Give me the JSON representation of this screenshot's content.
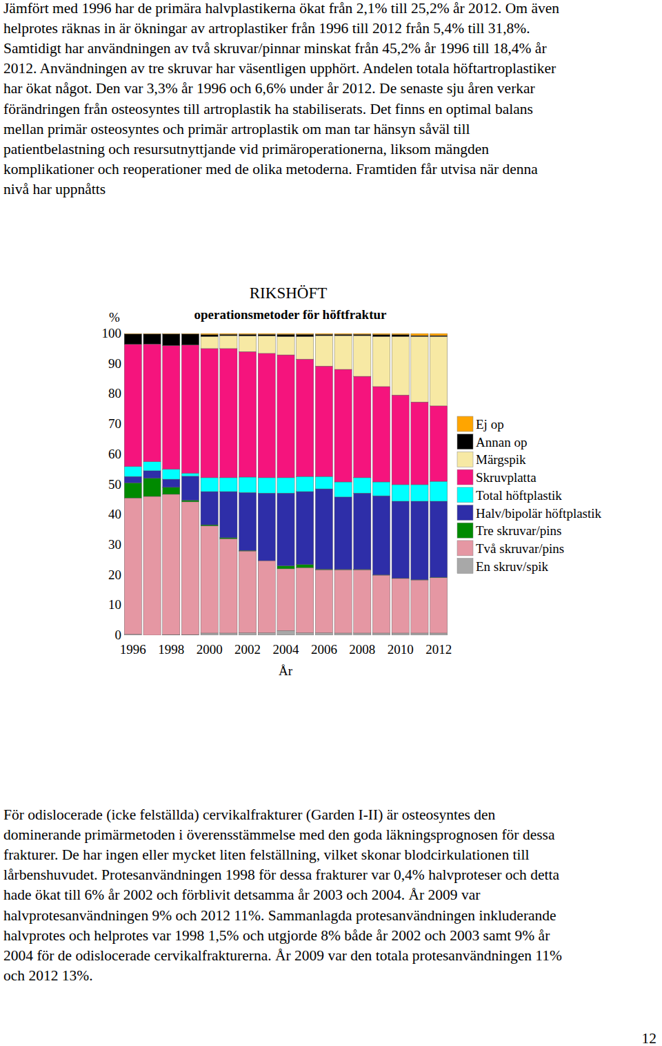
{
  "text_top": {
    "lines": [
      "Jämfört med 1996 har de primära halvplastikerna ökat från 2,1% till 25,2% år 2012. Om även",
      "helprotes räknas in är ökningar av artroplastiker från 1996 till 2012 från 5,4% till 31,8%.",
      "Samtidigt har användningen av två skruvar/pinnar minskat från 45,2% år 1996 till 18,4% år",
      "2012. Användningen av tre skruvar har väsentligen upphört. Andelen totala höftartroplastiker",
      "har ökat något. Den var 3,3% år 1996 och 6,6% under år 2012. De senaste sju åren verkar",
      "förändringen från osteosyntes till artroplastik ha stabiliserats. Det finns en optimal balans",
      "mellan primär osteosyntes och primär artroplastik om man tar hänsyn såväl till",
      "patientbelastning och resursutnyttjande vid primäroperationerna, liksom mängden",
      "komplikationer och reoperationer med de olika metoderna. Framtiden får utvisa när denna",
      "nivå har uppnåtts"
    ]
  },
  "chart_data": {
    "type": "bar",
    "stacked": true,
    "title": "RIKSHÖFT",
    "subtitle": "operationsmetoder för höftfraktur",
    "y_label": "%",
    "x_label": "År",
    "categories": [
      "1996",
      null,
      "1998",
      null,
      "2000",
      null,
      "2002",
      null,
      "2004",
      null,
      "2006",
      null,
      "2008",
      null,
      "2010",
      null,
      "2012"
    ],
    "ylim": [
      0,
      100
    ],
    "yticks": [
      0,
      10,
      20,
      30,
      40,
      50,
      60,
      70,
      80,
      90,
      100
    ],
    "grid": false,
    "legend": "right",
    "series": [
      {
        "name": "Ej op",
        "color": "#ffa500",
        "values": [
          0.2,
          0.2,
          0.2,
          0.2,
          0.4,
          0.3,
          0.3,
          0.3,
          0.3,
          0.3,
          0.3,
          0.3,
          0.3,
          0.4,
          0.4,
          0.7,
          0.7
        ]
      },
      {
        "name": "Annan op",
        "color": "#000000",
        "values": [
          3.4,
          3.3,
          3.8,
          3.6,
          0.6,
          0.4,
          0.5,
          0.5,
          0.7,
          0.7,
          0.4,
          0.4,
          0.4,
          0.6,
          0.6,
          0.3,
          0.3
        ]
      },
      {
        "name": "Märgspik",
        "color": "#f7e9a4",
        "values": [
          0,
          0,
          0,
          0,
          4,
          4.3,
          5.2,
          5.8,
          6.1,
          7.5,
          10.1,
          11.2,
          13.5,
          16.6,
          19.4,
          21.7,
          23
        ]
      },
      {
        "name": "Skruvplatta",
        "color": "#f5147d",
        "values": [
          40.5,
          39,
          41,
          42.5,
          42.8,
          42.8,
          41.6,
          41.2,
          40.7,
          38.9,
          36.6,
          37.3,
          33.6,
          31.6,
          29.7,
          27.4,
          25
        ]
      },
      {
        "name": "Total höftplastik",
        "color": "#00ffff",
        "values": [
          3.3,
          3,
          3.3,
          1,
          4.6,
          4.6,
          5.1,
          5.1,
          5.1,
          5,
          4.1,
          5,
          5.1,
          4.6,
          5.5,
          5.5,
          6.6
        ]
      },
      {
        "name": "Halv/bipolär höftplastik",
        "color": "#2e2ea8",
        "values": [
          2.1,
          2.5,
          2.7,
          8,
          11,
          15.3,
          19.2,
          22.4,
          24.1,
          24.2,
          26.6,
          24,
          25.3,
          26.2,
          25.5,
          26,
          25.2
        ]
      },
      {
        "name": "Tre skruvar/pins",
        "color": "#008a00",
        "values": [
          5,
          6,
          2.3,
          0.5,
          0.4,
          0.3,
          0.2,
          0,
          1,
          1,
          0.2,
          0.1,
          0.1,
          0.1,
          0.1,
          0.1,
          0.1
        ]
      },
      {
        "name": "Två skruvar/pins",
        "color": "#e597a3",
        "values": [
          45.2,
          46,
          46.5,
          44,
          35.5,
          31.3,
          27.1,
          23.9,
          20.5,
          21.6,
          20.9,
          21,
          21,
          19.2,
          18.1,
          17.6,
          18.4
        ]
      },
      {
        "name": "En skruv/spik",
        "color": "#a8a8a8",
        "values": [
          0.3,
          0,
          0.2,
          0.2,
          0.7,
          0.7,
          0.8,
          0.8,
          1.5,
          0.8,
          0.8,
          0.7,
          0.7,
          0.7,
          0.7,
          0.7,
          0.7
        ]
      }
    ]
  },
  "text_bottom": {
    "lines": [
      "För odislocerade (icke felställda) cervikalfrakturer (Garden I-II) är osteosyntes den",
      "dominerande primärmetoden i överensstämmelse med den goda läkningsprognosen för dessa",
      "frakturer. De har ingen eller mycket liten felställning, vilket skonar blodcirkulationen till",
      "lårbenshuvudet. Protesanvändningen 1998 för dessa frakturer var 0,4% halvproteser och detta",
      "hade ökat till 6% år 2002 och förblivit detsamma år 2003 och 2004. År 2009 var",
      "halvprotesanvändningen 9% och 2012 11%. Sammanlagda protesanvändningen inkluderande",
      "halvprotes och helprotes var 1998 1,5% och utgjorde 8% både år 2002 och 2003 samt 9% år",
      "2004 för de odislocerade cervikalfrakturerna. År 2009 var den totala protesanvändningen 11%",
      "och 2012 13%."
    ]
  },
  "page_number": "12"
}
